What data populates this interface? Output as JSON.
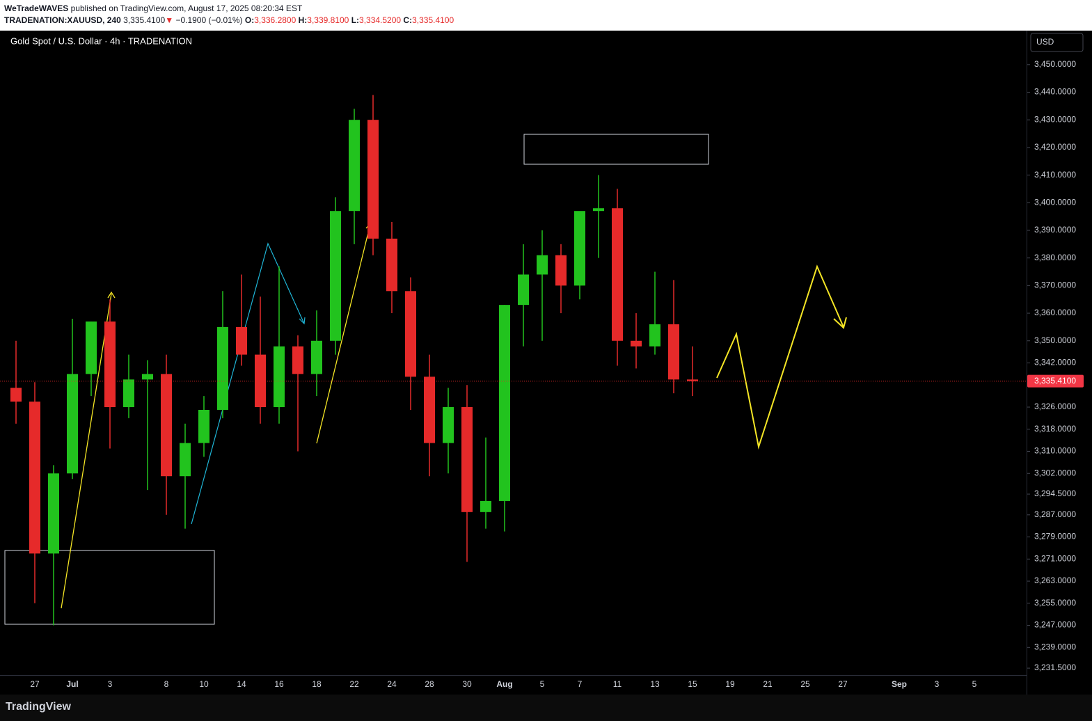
{
  "header": {
    "author": "WeTradeWAVES",
    "published": "published on TradingView.com, August 17, 2025 08:20:34 EST",
    "symbol": "TRADENATION:XAUUSD, 240",
    "last": "3,335.4100",
    "arrow": "▼",
    "change": "−0.1900 (−0.01%)",
    "o_label": "O:",
    "o": "3,336.2800",
    "h_label": "H:",
    "h": "3,339.8100",
    "l_label": "L:",
    "l": "3,334.5200",
    "c_label": "C:",
    "c": "3,335.4100"
  },
  "footer": {
    "brand": "TradingView"
  },
  "chart_data": {
    "type": "candlestick",
    "title": "Gold Spot / U.S. Dollar · 4h · TRADENATION",
    "currency": "USD",
    "up_color": "#22c31e",
    "down_color": "#e62a2a",
    "categories": [
      null,
      "27",
      null,
      "Jul",
      null,
      "3",
      null,
      null,
      "8",
      null,
      "10",
      null,
      "14",
      null,
      "16",
      null,
      "18",
      null,
      "22",
      null,
      "24",
      null,
      "28",
      null,
      "30",
      null,
      "Aug",
      null,
      "5",
      null,
      "7",
      null,
      "11",
      null,
      "13",
      null,
      "15",
      null,
      "19",
      null,
      "21",
      null,
      "25",
      null,
      "27",
      null,
      null,
      "Sep",
      null,
      "3",
      null,
      "5"
    ],
    "open": [
      3333,
      3328,
      3273,
      3302,
      3338,
      3357,
      3326,
      3336,
      3338,
      3301,
      3313,
      3325,
      3355,
      3345,
      3326,
      3348,
      3338,
      3350,
      3397,
      3430,
      3387,
      3368,
      3337,
      3313,
      3326,
      3288,
      3292,
      3363,
      3374,
      3381,
      3370,
      3397,
      3398,
      3350,
      3348,
      3356,
      3336,
      null,
      null,
      null,
      null,
      null,
      null,
      null,
      null,
      null,
      null,
      null,
      null,
      null,
      null,
      null
    ],
    "high": [
      3350,
      3335,
      3305,
      3358,
      3357,
      3365,
      3345,
      3343,
      3345,
      3320,
      3330,
      3368,
      3374,
      3366,
      3377,
      3352,
      3361,
      3402,
      3434,
      3439,
      3393,
      3373,
      3345,
      3333,
      3334,
      3315,
      3363,
      3385,
      3390,
      3385,
      3395,
      3410,
      3405,
      3360,
      3375,
      3372,
      3348,
      null,
      null,
      null,
      null,
      null,
      null,
      null,
      null,
      null,
      null,
      null,
      null,
      null,
      null,
      null
    ],
    "low": [
      3320,
      3255,
      3247,
      3300,
      3330,
      3311,
      3322,
      3296,
      3287,
      3282,
      3308,
      3322,
      3341,
      3320,
      3320,
      3310,
      3330,
      3345,
      3385,
      3381,
      3360,
      3325,
      3301,
      3302,
      3270,
      3282,
      3281,
      3348,
      3350,
      3360,
      3365,
      3380,
      3341,
      3340,
      3345,
      3331,
      3330,
      null,
      null,
      null,
      null,
      null,
      null,
      null,
      null,
      null,
      null,
      null,
      null,
      null,
      null,
      null
    ],
    "close": [
      3328,
      3273,
      3302,
      3338,
      3357,
      3326,
      3336,
      3338,
      3301,
      3313,
      3325,
      3355,
      3345,
      3326,
      3348,
      3338,
      3350,
      3397,
      3430,
      3387,
      3368,
      3337,
      3313,
      3326,
      3288,
      3292,
      3363,
      3374,
      3381,
      3370,
      3397,
      3398,
      3350,
      3348,
      3356,
      3336,
      3335.41,
      null,
      null,
      null,
      null,
      null,
      null,
      null,
      null,
      null,
      null,
      null,
      null,
      null,
      null,
      null
    ],
    "last_price": {
      "value": 3335.41,
      "label": "3,335.4100"
    },
    "ylim": [
      3229,
      3462.3
    ],
    "yticks": [
      {
        "value": 3450,
        "label": "3,450.0000"
      },
      {
        "value": 3440,
        "label": "3,440.0000"
      },
      {
        "value": 3430,
        "label": "3,430.0000"
      },
      {
        "value": 3420,
        "label": "3,420.0000"
      },
      {
        "value": 3410,
        "label": "3,410.0000"
      },
      {
        "value": 3400,
        "label": "3,400.0000"
      },
      {
        "value": 3390,
        "label": "3,390.0000"
      },
      {
        "value": 3380,
        "label": "3,380.0000"
      },
      {
        "value": 3370,
        "label": "3,370.0000"
      },
      {
        "value": 3360,
        "label": "3,360.0000"
      },
      {
        "value": 3350,
        "label": "3,350.0000"
      },
      {
        "value": 3342,
        "label": "3,342.0000"
      },
      {
        "value": 3326,
        "label": "3,326.0000"
      },
      {
        "value": 3318,
        "label": "3,318.0000"
      },
      {
        "value": 3310,
        "label": "3,310.0000"
      },
      {
        "value": 3302,
        "label": "3,302.0000"
      },
      {
        "value": 3294.5,
        "label": "3,294.5000"
      },
      {
        "value": 3287,
        "label": "3,287.0000"
      },
      {
        "value": 3279,
        "label": "3,279.0000"
      },
      {
        "value": 3271,
        "label": "3,271.0000"
      },
      {
        "value": 3263,
        "label": "3,263.0000"
      },
      {
        "value": 3255,
        "label": "3,255.0000"
      },
      {
        "value": 3247,
        "label": "3,247.0000"
      },
      {
        "value": 3239,
        "label": "3,239.0000"
      },
      {
        "value": 3231.5,
        "label": "3,231.5000"
      }
    ]
  }
}
